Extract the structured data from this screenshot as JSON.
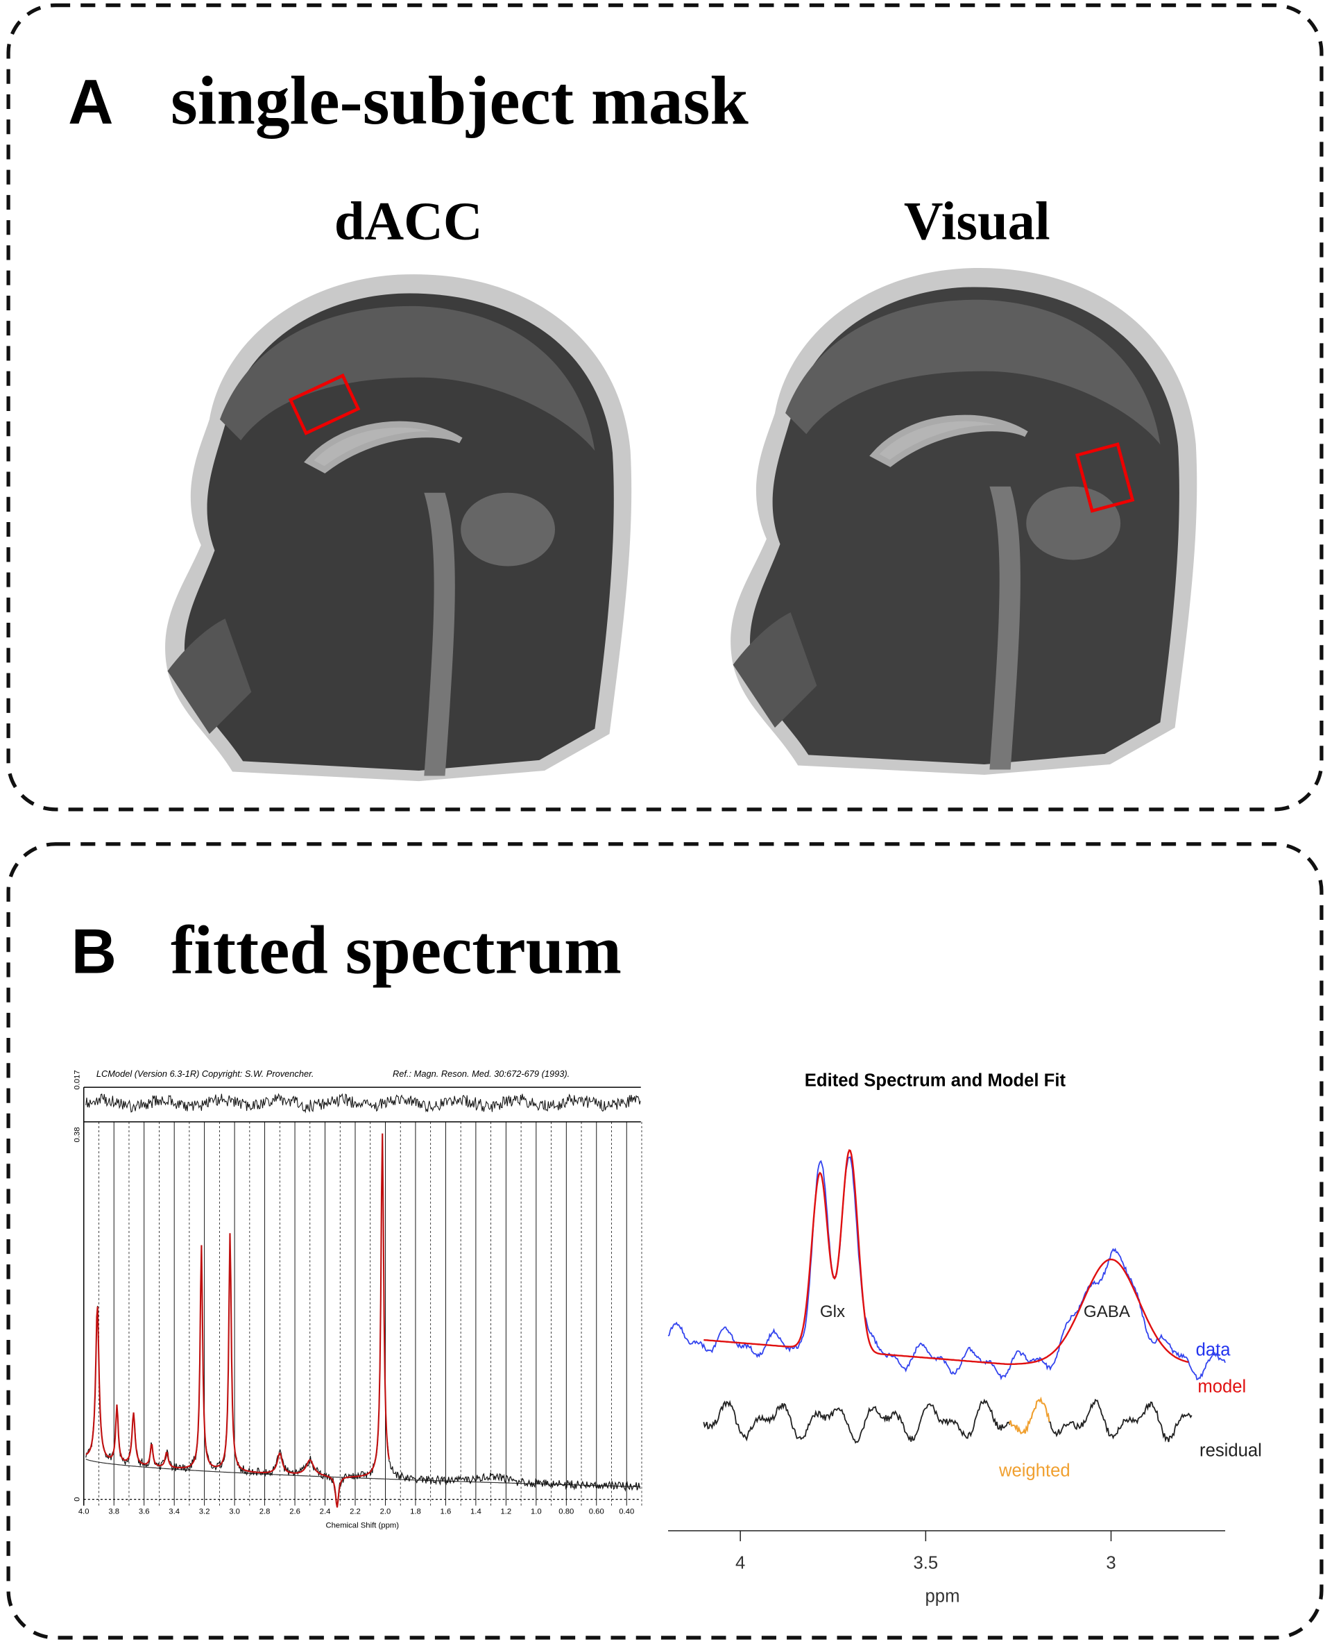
{
  "panel_a": {
    "label": "A",
    "title": "single-subject mask",
    "images": [
      {
        "label": "dACC"
      },
      {
        "label": "Visual"
      }
    ]
  },
  "panel_b": {
    "label": "B",
    "title": "fitted spectrum",
    "lcmodel": {
      "header": "LCModel (Version 6.3-1R) Copyright: S.W. Provencher.",
      "reference": "Ref.: Magn. Reson. Med. 30:672-679 (1993).",
      "residual_scale": "0.017",
      "y_top": "0.38",
      "y_zero": "0",
      "x_ticks": [
        "4.0",
        "3.8",
        "3.6",
        "3.4",
        "3.2",
        "3.0",
        "2.8",
        "2.6",
        "2.4",
        "2.2",
        "2.0",
        "1.8",
        "1.6",
        "1.4",
        "1.2",
        "1.0",
        "0.80",
        "0.60",
        "0.40"
      ],
      "x_label": "Chemical Shift (ppm)"
    },
    "edited": {
      "title": "Edited Spectrum and Model Fit",
      "peak_labels": [
        "Glx",
        "GABA"
      ],
      "legend": [
        "data",
        "model",
        "residual",
        "weighted"
      ],
      "x_ticks": [
        "4",
        "3.5",
        "3"
      ],
      "x_label": "ppm"
    }
  }
}
